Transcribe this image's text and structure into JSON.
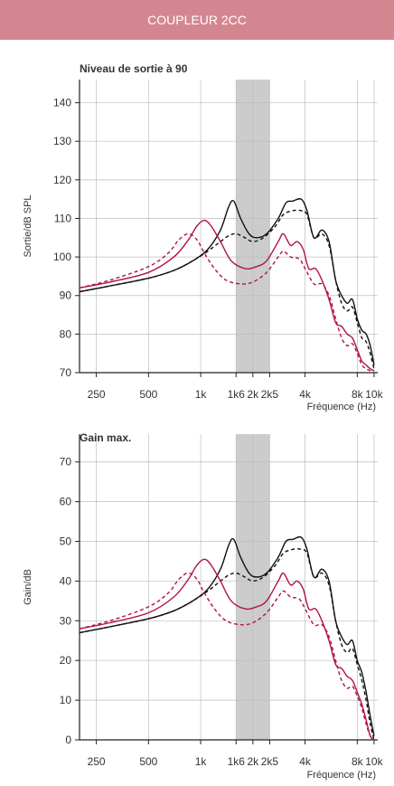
{
  "header": {
    "title": "COUPLEUR 2CC"
  },
  "colors": {
    "header_bg": "#d48690",
    "grey_band": "#cccccc",
    "black": "#111111",
    "crimson": "#b0124a"
  },
  "chart_data": [
    {
      "type": "line",
      "title": "Niveau de sortie à 90",
      "ylabel": "Sortie/dB SPL",
      "xlabel": "Fréquence (Hz)",
      "xscale": "log",
      "xlim": [
        200,
        10500
      ],
      "ylim": [
        70,
        146
      ],
      "yticks": [
        70,
        80,
        90,
        100,
        110,
        120,
        130,
        140
      ],
      "xticks": [
        {
          "value": 250,
          "label": "250"
        },
        {
          "value": 500,
          "label": "500"
        },
        {
          "value": 1000,
          "label": "1k"
        },
        {
          "value": 1600,
          "label": "1k6"
        },
        {
          "value": 2000,
          "label": "2k"
        },
        {
          "value": 2500,
          "label": "2k5"
        },
        {
          "value": 4000,
          "label": "4k"
        },
        {
          "value": 8000,
          "label": "8k"
        },
        {
          "value": 10000,
          "label": "10k"
        }
      ],
      "grid": true,
      "shaded_band": [
        1600,
        2500
      ],
      "series": [
        {
          "color": "#111111",
          "dash": "none",
          "x": [
            200,
            300,
            500,
            700,
            900,
            1100,
            1300,
            1450,
            1550,
            1700,
            1900,
            2100,
            2400,
            2800,
            3100,
            3400,
            3800,
            4100,
            4500,
            5000,
            5500,
            6000,
            6500,
            7000,
            7500,
            8000,
            8500,
            9000,
            9500,
            10000
          ],
          "y": [
            91,
            92.5,
            94.5,
            96.5,
            99,
            102,
            107,
            113,
            114.5,
            110,
            106,
            105,
            106,
            110,
            114,
            114.5,
            115,
            112,
            105,
            107,
            104,
            94,
            90,
            88,
            89,
            84,
            81,
            80,
            77,
            72
          ]
        },
        {
          "color": "#111111",
          "dash": "4,3",
          "x": [
            200,
            300,
            500,
            700,
            900,
            1100,
            1300,
            1450,
            1600,
            1800,
            2000,
            2300,
            2700,
            3000,
            3400,
            3800,
            4100,
            4500,
            5000,
            5500,
            6000,
            6500,
            7000,
            7500,
            8000,
            8500,
            9000,
            9500,
            10000
          ],
          "y": [
            91,
            92.5,
            94.5,
            96.5,
            99,
            101.5,
            104,
            105.5,
            106,
            105,
            104,
            105,
            108,
            111,
            112,
            112,
            111,
            105,
            106,
            103,
            94,
            88,
            86,
            87,
            83,
            79,
            78,
            75,
            71
          ]
        },
        {
          "color": "#b0124a",
          "dash": "none",
          "x": [
            200,
            300,
            500,
            700,
            850,
            950,
            1050,
            1150,
            1300,
            1500,
            1800,
            2100,
            2400,
            2800,
            3000,
            3300,
            3600,
            3900,
            4200,
            4600,
            5000,
            5500,
            6000,
            6500,
            7000,
            7500,
            8000,
            8500,
            9000,
            9500,
            10000
          ],
          "y": [
            92,
            93.5,
            96,
            100,
            104.5,
            108,
            109.5,
            108,
            104,
            99,
            97,
            97.5,
            99,
            104,
            106,
            103,
            104,
            102,
            97,
            97,
            94,
            89,
            83,
            82,
            80,
            79,
            76,
            73,
            72,
            71,
            70.5
          ]
        },
        {
          "color": "#b0124a",
          "dash": "4,3",
          "x": [
            200,
            300,
            500,
            650,
            750,
            850,
            950,
            1050,
            1200,
            1400,
            1700,
            2000,
            2400,
            2800,
            3000,
            3300,
            3700,
            4000,
            4500,
            5000,
            5500,
            6000,
            6500,
            7000,
            7500,
            8000,
            8500,
            9000,
            9500,
            10000
          ],
          "y": [
            92,
            94,
            97.5,
            101,
            104.5,
            106,
            104.5,
            101,
            97,
            94,
            93,
            93.5,
            96,
            100,
            101.5,
            100,
            99.5,
            97,
            93,
            93,
            90,
            84,
            79,
            77,
            77.5,
            75,
            72,
            71,
            70.5,
            70
          ]
        }
      ]
    },
    {
      "type": "line",
      "title": "Gain max.",
      "ylabel": "Gain/dB",
      "xlabel": "Fréquence (Hz)",
      "xscale": "log",
      "xlim": [
        200,
        10500
      ],
      "ylim": [
        0,
        77
      ],
      "yticks": [
        0,
        10,
        20,
        30,
        40,
        50,
        60,
        70
      ],
      "xticks": [
        {
          "value": 250,
          "label": "250"
        },
        {
          "value": 500,
          "label": "500"
        },
        {
          "value": 1000,
          "label": "1k"
        },
        {
          "value": 1600,
          "label": "1k6"
        },
        {
          "value": 2000,
          "label": "2k"
        },
        {
          "value": 2500,
          "label": "2k5"
        },
        {
          "value": 4000,
          "label": "4k"
        },
        {
          "value": 8000,
          "label": "8k"
        },
        {
          "value": 10000,
          "label": "10k"
        }
      ],
      "grid": true,
      "shaded_band": [
        1600,
        2500
      ],
      "series": [
        {
          "color": "#111111",
          "dash": "none",
          "x": [
            200,
            300,
            500,
            700,
            900,
            1100,
            1300,
            1450,
            1550,
            1700,
            1900,
            2100,
            2400,
            2800,
            3100,
            3400,
            3800,
            4100,
            4500,
            5000,
            5500,
            6000,
            6500,
            7000,
            7500,
            8000,
            8500,
            9000,
            9500,
            10000
          ],
          "y": [
            27,
            28.5,
            30.5,
            32.5,
            35,
            38,
            43,
            49,
            50.5,
            46,
            42,
            41,
            42,
            46,
            50,
            50.5,
            51,
            48,
            41,
            43,
            40,
            30,
            26,
            24,
            25,
            20,
            17,
            12,
            6,
            1
          ]
        },
        {
          "color": "#111111",
          "dash": "4,3",
          "x": [
            200,
            300,
            500,
            700,
            900,
            1100,
            1300,
            1450,
            1600,
            1800,
            2000,
            2300,
            2700,
            3000,
            3400,
            3800,
            4100,
            4500,
            5000,
            5500,
            6000,
            6500,
            7000,
            7500,
            8000,
            8500,
            9000,
            9500,
            10000
          ],
          "y": [
            27,
            28.5,
            30.5,
            32.5,
            35,
            37.5,
            40,
            41.5,
            42,
            41,
            40,
            41,
            44,
            47,
            48,
            48,
            47,
            41,
            42,
            39,
            30,
            24,
            22,
            23,
            19,
            15,
            10,
            4,
            0
          ]
        },
        {
          "color": "#b0124a",
          "dash": "none",
          "x": [
            200,
            300,
            500,
            700,
            850,
            950,
            1050,
            1150,
            1300,
            1500,
            1800,
            2100,
            2400,
            2800,
            3000,
            3300,
            3600,
            3900,
            4200,
            4600,
            5000,
            5500,
            6000,
            6500,
            7000,
            7500,
            8000,
            8500,
            9000,
            9500,
            10000
          ],
          "y": [
            28,
            29.5,
            32,
            36,
            40.5,
            44,
            45.5,
            44,
            40,
            35,
            33,
            33.5,
            35,
            40,
            42,
            39,
            40,
            38,
            33,
            33,
            30,
            25,
            19,
            18,
            16,
            15,
            12,
            9,
            5,
            1,
            0
          ]
        },
        {
          "color": "#b0124a",
          "dash": "4,3",
          "x": [
            200,
            300,
            500,
            650,
            750,
            850,
            950,
            1050,
            1200,
            1400,
            1700,
            2000,
            2400,
            2800,
            3000,
            3300,
            3700,
            4000,
            4500,
            5000,
            5500,
            6000,
            6500,
            7000,
            7500,
            8000,
            8500,
            9000,
            9500,
            10000
          ],
          "y": [
            28,
            30,
            33.5,
            37,
            40.5,
            42,
            40.5,
            37,
            33,
            30,
            29,
            29.5,
            32,
            36,
            37.5,
            36,
            35.5,
            33,
            29,
            29,
            26,
            20,
            15,
            13,
            13.5,
            11,
            8,
            4,
            1,
            0
          ]
        }
      ]
    }
  ]
}
